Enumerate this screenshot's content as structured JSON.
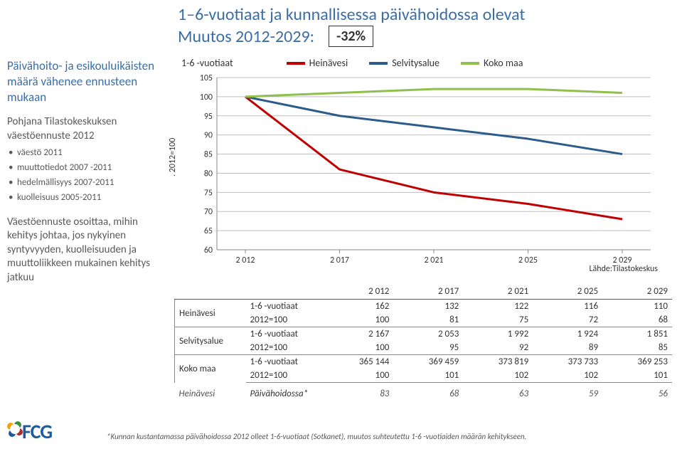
{
  "title": "1–6-vuotiaat ja kunnallisessa päivähoidossa olevat",
  "subtitle_prefix": "Muutos 2012-2029:",
  "change_value": "-32%",
  "side": {
    "heading": "Päivähoito- ja esikouluikäisten määrä vähenee ennusteen mukaan",
    "sub1": "Pohjana Tilastokeskuksen väestöennuste 2012",
    "bullets": [
      "väestö 2011",
      "muuttotiedot 2007 -2011",
      "hedelmällisyys 2007-2011",
      "kuolleisuus 2005-2011"
    ],
    "sub2": "Väestöennuste osoittaa, mihin kehitys johtaa, jos nykyinen syntyvyyden, kuolleisuuden ja muuttoliikkeen mukainen kehitys jatkuu"
  },
  "chart": {
    "series_title": "1-6 -vuotiaat",
    "y_axis_label": ". 2012=100",
    "source": "Lähde:Tilastokeskus",
    "ylim": [
      60,
      105
    ],
    "yticks": [
      60,
      65,
      70,
      75,
      80,
      85,
      90,
      95,
      100,
      105
    ],
    "x_categories": [
      "2 012",
      "2 017",
      "2 021",
      "2 025",
      "2 029"
    ],
    "background": "#ffffff",
    "grid_color": "#bfbfbf",
    "axis_color": "#888888",
    "tick_font_size": 12,
    "line_width": 3,
    "series": [
      {
        "name": "Heinävesi",
        "color": "#c00000",
        "values": [
          100,
          81,
          75,
          72,
          68
        ]
      },
      {
        "name": "Selvitysalue",
        "color": "#2c5c8a",
        "values": [
          100,
          95,
          92,
          89,
          85
        ]
      },
      {
        "name": "Koko maa",
        "color": "#8fbf4d",
        "values": [
          100,
          101,
          102,
          102,
          101
        ]
      }
    ]
  },
  "table": {
    "year_headers": [
      "2 012",
      "2 017",
      "2 021",
      "2 025",
      "2 029"
    ],
    "groups": [
      {
        "label": "Heinävesi",
        "rows": [
          {
            "label": "1-6 -vuotiaat",
            "values": [
              "162",
              "132",
              "122",
              "116",
              "110"
            ]
          },
          {
            "label": "2012=100",
            "values": [
              "100",
              "81",
              "75",
              "72",
              "68"
            ]
          }
        ]
      },
      {
        "label": "Selvitysalue",
        "rows": [
          {
            "label": "1-6 -vuotiaat",
            "values": [
              "2 167",
              "2 053",
              "1 992",
              "1 924",
              "1 851"
            ]
          },
          {
            "label": "2012=100",
            "values": [
              "100",
              "95",
              "92",
              "89",
              "85"
            ]
          }
        ]
      },
      {
        "label": "Koko maa",
        "rows": [
          {
            "label": "1-6 -vuotiaat",
            "values": [
              "365 144",
              "369 459",
              "373 819",
              "373 733",
              "369 253"
            ]
          },
          {
            "label": "2012=100",
            "values": [
              "100",
              "101",
              "102",
              "102",
              "101"
            ]
          }
        ]
      }
    ],
    "paivi": {
      "group": "Heinävesi",
      "label": "Päivähoidossa*",
      "values": [
        "83",
        "68",
        "63",
        "59",
        "56"
      ]
    }
  },
  "footnote": "*Kunnan kustantamassa päivähoidossa 2012 olleet 1-6-vuotiaat (Sotkanet), muutos suhteutettu 1-6 -vuotiaiden määrän kehitykseen.",
  "logo": "FCG"
}
